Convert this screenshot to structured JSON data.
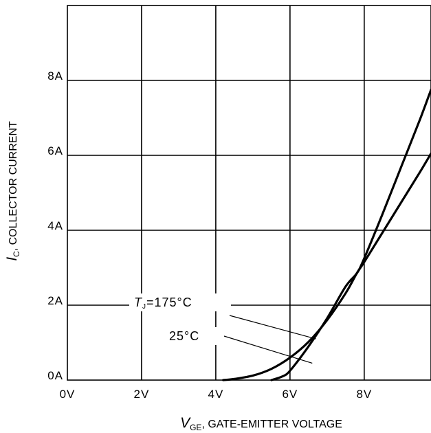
{
  "chart_data": {
    "type": "line",
    "xlabel": {
      "symbol": "V",
      "subscript": "GE",
      "rest": ", GATE-EMITTER VOLTAGE"
    },
    "ylabel": {
      "symbol": "I",
      "subscript": "C",
      "rest": ", COLLECTOR CURRENT"
    },
    "xlim": [
      0,
      9.8
    ],
    "ylim": [
      0,
      10
    ],
    "x_ticks": [
      {
        "value": 0,
        "label": "0V"
      },
      {
        "value": 2,
        "label": "2V"
      },
      {
        "value": 4,
        "label": "4V"
      },
      {
        "value": 6,
        "label": "6V"
      },
      {
        "value": 8,
        "label": "8V"
      }
    ],
    "y_ticks": [
      {
        "value": 0,
        "label": "0A"
      },
      {
        "value": 2,
        "label": "2A"
      },
      {
        "value": 4,
        "label": "4A"
      },
      {
        "value": 6,
        "label": "6A"
      },
      {
        "value": 8,
        "label": "8A"
      }
    ],
    "grid": true,
    "series": [
      {
        "name": "175°C",
        "x": [
          4.2,
          4.5,
          5.0,
          5.5,
          6.0,
          6.5,
          7.0,
          7.5,
          7.8,
          8.0,
          8.5,
          9.0,
          9.5,
          9.8
        ],
        "y": [
          0.0,
          0.03,
          0.12,
          0.3,
          0.6,
          1.02,
          1.6,
          2.32,
          2.85,
          3.15,
          3.95,
          4.75,
          5.55,
          6.05
        ]
      },
      {
        "name": "25°C",
        "x": [
          5.5,
          5.8,
          6.0,
          6.5,
          7.0,
          7.5,
          7.8,
          8.0,
          8.5,
          9.0,
          9.5,
          9.8
        ],
        "y": [
          0.0,
          0.1,
          0.25,
          0.9,
          1.65,
          2.5,
          2.85,
          3.25,
          4.45,
          5.7,
          6.95,
          7.75
        ]
      }
    ],
    "annotations": [
      {
        "series": "175°C",
        "prefix": "T",
        "subscript": "J",
        "text": "=175°C",
        "point_x": 6.7,
        "point_y": 1.1
      },
      {
        "series": "25°C",
        "prefix": "",
        "subscript": "",
        "text": "25°C",
        "point_x": 6.6,
        "point_y": 0.45
      }
    ]
  }
}
